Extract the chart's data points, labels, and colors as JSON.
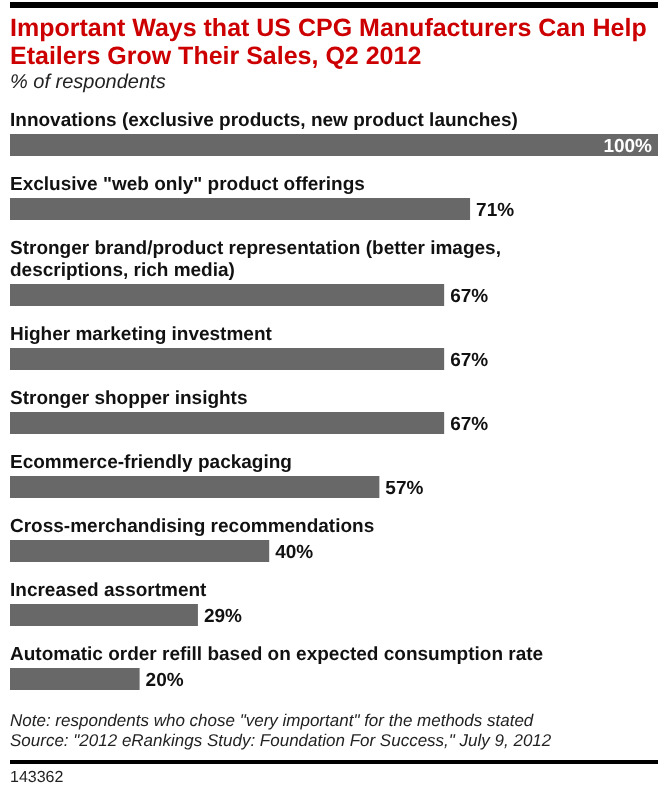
{
  "chart_data": {
    "type": "bar",
    "orientation": "horizontal",
    "title": "Important Ways that US CPG Manufacturers Can Help Etailers Grow Their Sales, Q2 2012",
    "subtitle": "% of respondents",
    "categories": [
      "Innovations (exclusive products, new product launches)",
      "Exclusive \"web only\" product offerings",
      "Stronger brand/product representation (better images, descriptions, rich media)",
      "Higher marketing investment",
      "Stronger shopper insights",
      "Ecommerce-friendly packaging",
      "Cross-merchandising recommendations",
      "Increased assortment",
      "Automatic order refill based on expected consumption rate"
    ],
    "values": [
      100,
      71,
      67,
      67,
      67,
      57,
      40,
      29,
      20
    ],
    "value_labels": [
      "100%",
      "71%",
      "67%",
      "67%",
      "67%",
      "57%",
      "40%",
      "29%",
      "20%"
    ],
    "color": "#686868",
    "annotations": [
      "Note: respondents who chose \"very important\" for the methods stated",
      "Source: \"2012 eRankings Study: Foundation For Success,\" July 9, 2012",
      "143362"
    ]
  }
}
